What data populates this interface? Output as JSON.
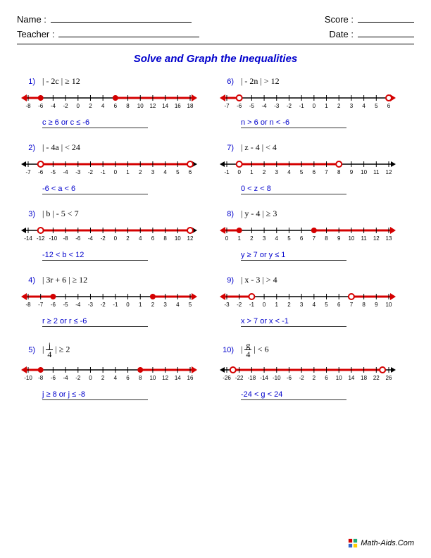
{
  "header": {
    "name_label": "Name :",
    "teacher_label": "Teacher :",
    "score_label": "Score :",
    "date_label": "Date :"
  },
  "title": "Solve and Graph the Inequalities",
  "style": {
    "line_color": "#d40000",
    "tick_color": "#000000",
    "answer_color": "#0000cc",
    "title_color": "#0000cc",
    "numline_width": 250,
    "numline_height": 34,
    "tick_label_fontsize": 8,
    "point_radius_closed": 4,
    "point_radius_open": 4,
    "arrow_size": 6
  },
  "problems": [
    {
      "num": "1)",
      "expr": "| - 2c | ≥ 12",
      "ticks": [
        -8,
        -6,
        -4,
        -2,
        0,
        2,
        4,
        6,
        8,
        10,
        12,
        14,
        16,
        18
      ],
      "segments": [
        {
          "from": -8,
          "to": -6,
          "arrow": "left"
        },
        {
          "from": 6,
          "to": 18,
          "arrow": "right"
        }
      ],
      "points": [
        {
          "x": -6,
          "open": false
        },
        {
          "x": 6,
          "open": false
        }
      ],
      "answer": "c ≥ 6   or   c ≤ -6"
    },
    {
      "num": "6)",
      "expr": "| - 2n | > 12",
      "ticks": [
        -7,
        -6,
        -5,
        -4,
        -3,
        -2,
        -1,
        0,
        1,
        2,
        3,
        4,
        5,
        6
      ],
      "segments": [
        {
          "from": -7,
          "to": -6,
          "arrow": "left"
        },
        {
          "from": 6,
          "to": 6.5,
          "arrow": "right",
          "ext": true
        }
      ],
      "points": [
        {
          "x": -6,
          "open": true
        },
        {
          "x": 6,
          "open": true
        }
      ],
      "answer": "n > 6   or   n < -6"
    },
    {
      "num": "2)",
      "expr": "| - 4a | < 24",
      "ticks": [
        -7,
        -6,
        -5,
        -4,
        -3,
        -2,
        -1,
        0,
        1,
        2,
        3,
        4,
        5,
        6
      ],
      "segments": [
        {
          "from": -6,
          "to": 6
        }
      ],
      "points": [
        {
          "x": -6,
          "open": true
        },
        {
          "x": 6,
          "open": true
        }
      ],
      "answer": "-6 < a < 6"
    },
    {
      "num": "7)",
      "expr": "| z - 4 | < 4",
      "ticks": [
        -1,
        0,
        1,
        2,
        3,
        4,
        5,
        6,
        7,
        8,
        9,
        10,
        11,
        12
      ],
      "segments": [
        {
          "from": 0,
          "to": 8
        }
      ],
      "points": [
        {
          "x": 0,
          "open": true
        },
        {
          "x": 8,
          "open": true
        }
      ],
      "answer": "0 < z < 8"
    },
    {
      "num": "3)",
      "expr": "| b | - 5 < 7",
      "ticks": [
        -14,
        -12,
        -10,
        -8,
        -6,
        -4,
        -2,
        0,
        2,
        4,
        6,
        8,
        10,
        12
      ],
      "segments": [
        {
          "from": -12,
          "to": 12
        }
      ],
      "points": [
        {
          "x": -12,
          "open": true
        },
        {
          "x": 12,
          "open": true
        }
      ],
      "answer": "-12 < b < 12"
    },
    {
      "num": "8)",
      "expr": "| y - 4 | ≥ 3",
      "ticks": [
        0,
        1,
        2,
        3,
        4,
        5,
        6,
        7,
        8,
        9,
        10,
        11,
        12,
        13
      ],
      "segments": [
        {
          "from": 0,
          "to": 1,
          "arrow": "left"
        },
        {
          "from": 7,
          "to": 13,
          "arrow": "right"
        }
      ],
      "points": [
        {
          "x": 1,
          "open": false
        },
        {
          "x": 7,
          "open": false
        }
      ],
      "answer": "y ≥ 7   or   y ≤ 1"
    },
    {
      "num": "4)",
      "expr": "| 3r + 6 | ≥ 12",
      "ticks": [
        -8,
        -7,
        -6,
        -5,
        -4,
        -3,
        -2,
        -1,
        0,
        1,
        2,
        3,
        4,
        5
      ],
      "segments": [
        {
          "from": -8,
          "to": -6,
          "arrow": "left"
        },
        {
          "from": 2,
          "to": 5,
          "arrow": "right"
        }
      ],
      "points": [
        {
          "x": -6,
          "open": false
        },
        {
          "x": 2,
          "open": false
        }
      ],
      "answer": "r ≥ 2   or   r ≤ -6"
    },
    {
      "num": "9)",
      "expr": "| x - 3 | > 4",
      "ticks": [
        -3,
        -2,
        -1,
        0,
        1,
        2,
        3,
        4,
        5,
        6,
        7,
        8,
        9,
        10
      ],
      "segments": [
        {
          "from": -3,
          "to": -1,
          "arrow": "left"
        },
        {
          "from": 7,
          "to": 10,
          "arrow": "right"
        }
      ],
      "points": [
        {
          "x": -1,
          "open": true
        },
        {
          "x": 7,
          "open": true
        }
      ],
      "answer": "x > 7   or   x < -1"
    },
    {
      "num": "5)",
      "expr_frac": {
        "before": "| ",
        "num": "j",
        "den": "4",
        "after": " | ≥ 2"
      },
      "ticks": [
        -10,
        -8,
        -6,
        -4,
        -2,
        0,
        2,
        4,
        6,
        8,
        10,
        12,
        14,
        16
      ],
      "segments": [
        {
          "from": -10,
          "to": -8,
          "arrow": "left"
        },
        {
          "from": 8,
          "to": 16,
          "arrow": "right"
        }
      ],
      "points": [
        {
          "x": -8,
          "open": false
        },
        {
          "x": 8,
          "open": false
        }
      ],
      "answer": "j ≥ 8   or   j ≤ -8"
    },
    {
      "num": "10)",
      "expr_frac": {
        "before": "| ",
        "num": "g",
        "den": "4",
        "after": " | < 6"
      },
      "ticks": [
        -26,
        -22,
        -18,
        -14,
        -10,
        -6,
        -2,
        2,
        6,
        10,
        14,
        18,
        22,
        26
      ],
      "segments": [
        {
          "from": -24,
          "to": 24
        }
      ],
      "points": [
        {
          "x": -24,
          "open": true
        },
        {
          "x": 24,
          "open": true
        }
      ],
      "answer": "-24 < g < 24"
    }
  ],
  "footer": "Math-Aids.Com"
}
